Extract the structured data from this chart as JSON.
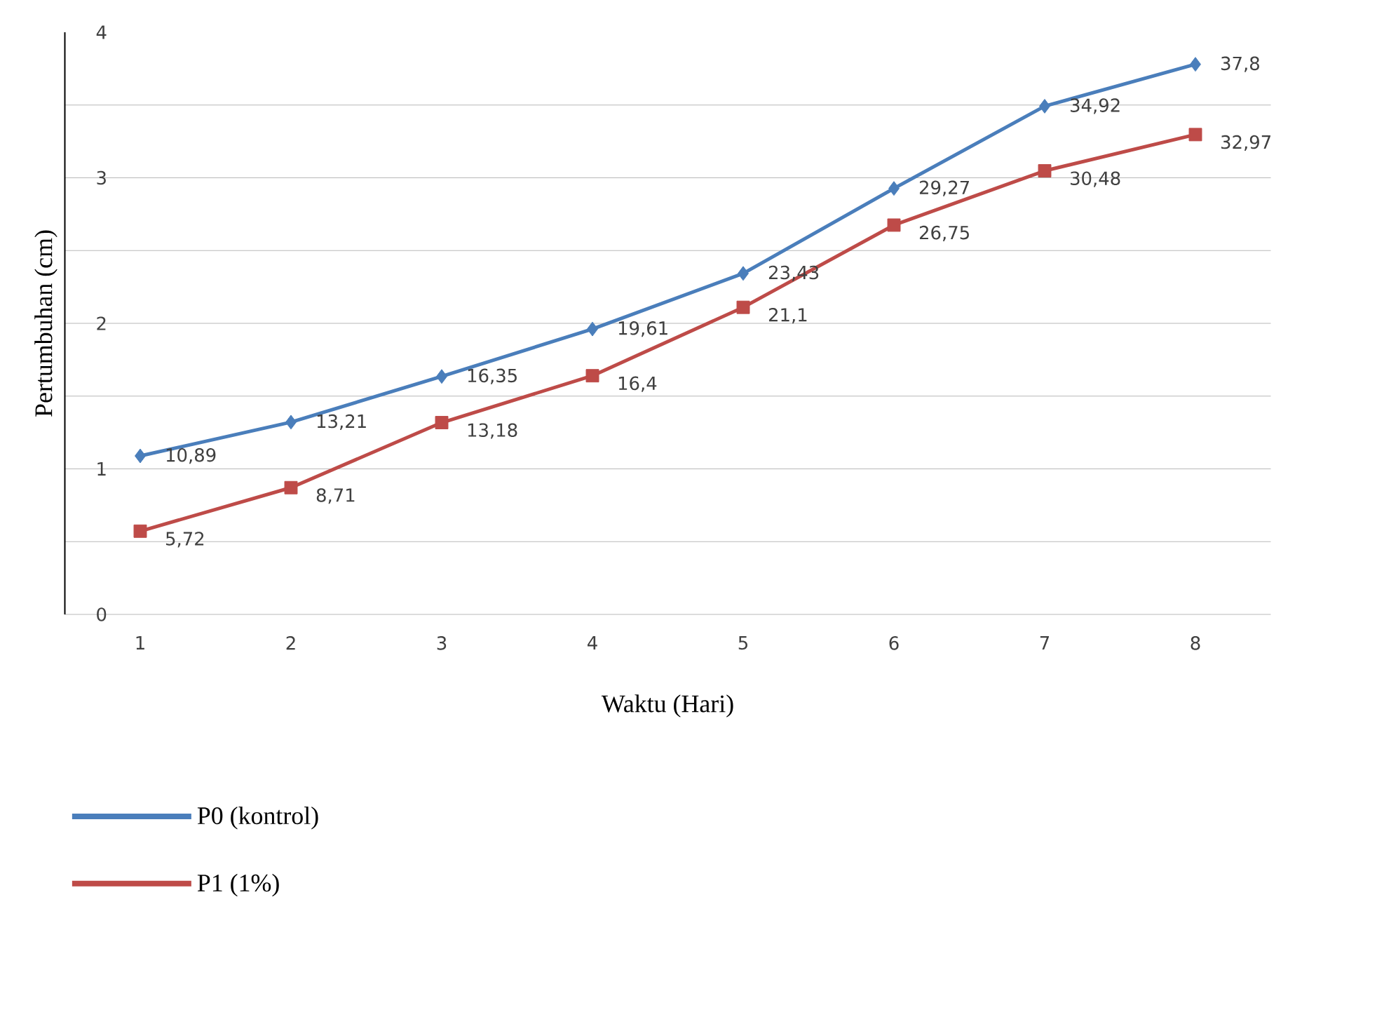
{
  "chart_data": {
    "type": "line",
    "xlabel": "Waktu (Hari)",
    "ylabel": "Pertumbuhan (cm)",
    "categories": [
      "1",
      "2",
      "3",
      "4",
      "5",
      "6",
      "7",
      "8"
    ],
    "series": [
      {
        "name": "P0 (kontrol)",
        "color": "#4a7ebb",
        "marker": "diamond",
        "values": [
          10.89,
          13.21,
          16.35,
          19.61,
          23.43,
          29.27,
          34.92,
          37.8
        ],
        "value_labels": [
          "10,89",
          "13,21",
          "16,35",
          "19,61",
          "23,43",
          "29,27",
          "34,92",
          "37,8"
        ]
      },
      {
        "name": "P1 (1%)",
        "color": "#be4b48",
        "marker": "square",
        "values": [
          5.72,
          8.71,
          13.18,
          16.4,
          21.1,
          26.75,
          30.48,
          32.97
        ],
        "value_labels": [
          "5,72",
          "8,71",
          "13,18",
          "16,4",
          "21,1",
          "26,75",
          "30,48",
          "32,97"
        ]
      }
    ],
    "ylim": [
      0,
      40
    ],
    "yticks": [
      {
        "value": 0,
        "label": null
      },
      {
        "value": 5,
        "label": null
      },
      {
        "value": 10,
        "label": null
      },
      {
        "value": 15,
        "label": null
      },
      {
        "value": 20,
        "label": null
      },
      {
        "value": 25,
        "label": null
      },
      {
        "value": 30,
        "label": null
      },
      {
        "value": 35,
        "label": null
      }
    ],
    "y2lim": [
      0,
      4
    ],
    "y2ticks": [
      0,
      1,
      2,
      3,
      4
    ],
    "grid": "y",
    "legend": "bottom left"
  }
}
